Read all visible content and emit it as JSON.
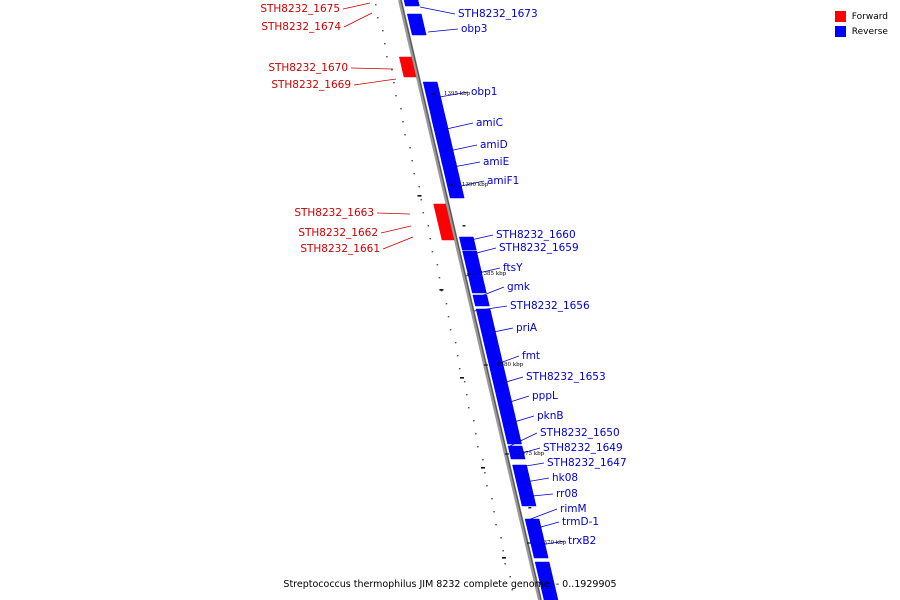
{
  "caption": "Streptococcus thermophilus JIM 8232 complete genome. - 0..1929905",
  "legend": [
    {
      "label": "Forward",
      "color": "#ff0000"
    },
    {
      "label": "Reverse",
      "color": "#0000ff"
    }
  ],
  "colors": {
    "forward": "#ff0000",
    "reverse": "#0000ff",
    "forward_text": "#cc0000",
    "reverse_text": "#0000cc",
    "backbone": "#808080"
  },
  "scale_ticks": [
    "1395 kbp",
    "1390 kbp",
    "1385 kbp",
    "1380 kbp",
    "1375 kbp",
    "1370 kbp"
  ],
  "forward_genes": [
    "STH8232_1675",
    "STH8232_1674",
    "STH8232_1670",
    "STH8232_1669",
    "STH8232_1663",
    "STH8232_1662",
    "STH8232_1661"
  ],
  "reverse_genes": [
    "STH8232_1673",
    "obp3",
    "obp1",
    "amiC",
    "amiD",
    "amiE",
    "amiF1",
    "STH8232_1660",
    "STH8232_1659",
    "ftsY",
    "gmk",
    "STH8232_1656",
    "priA",
    "fmt",
    "STH8232_1653",
    "pppL",
    "pknB",
    "STH8232_1650",
    "STH8232_1649",
    "STH8232_1647",
    "hk08",
    "rr08",
    "rimM",
    "trmD-1",
    "trxB2"
  ]
}
